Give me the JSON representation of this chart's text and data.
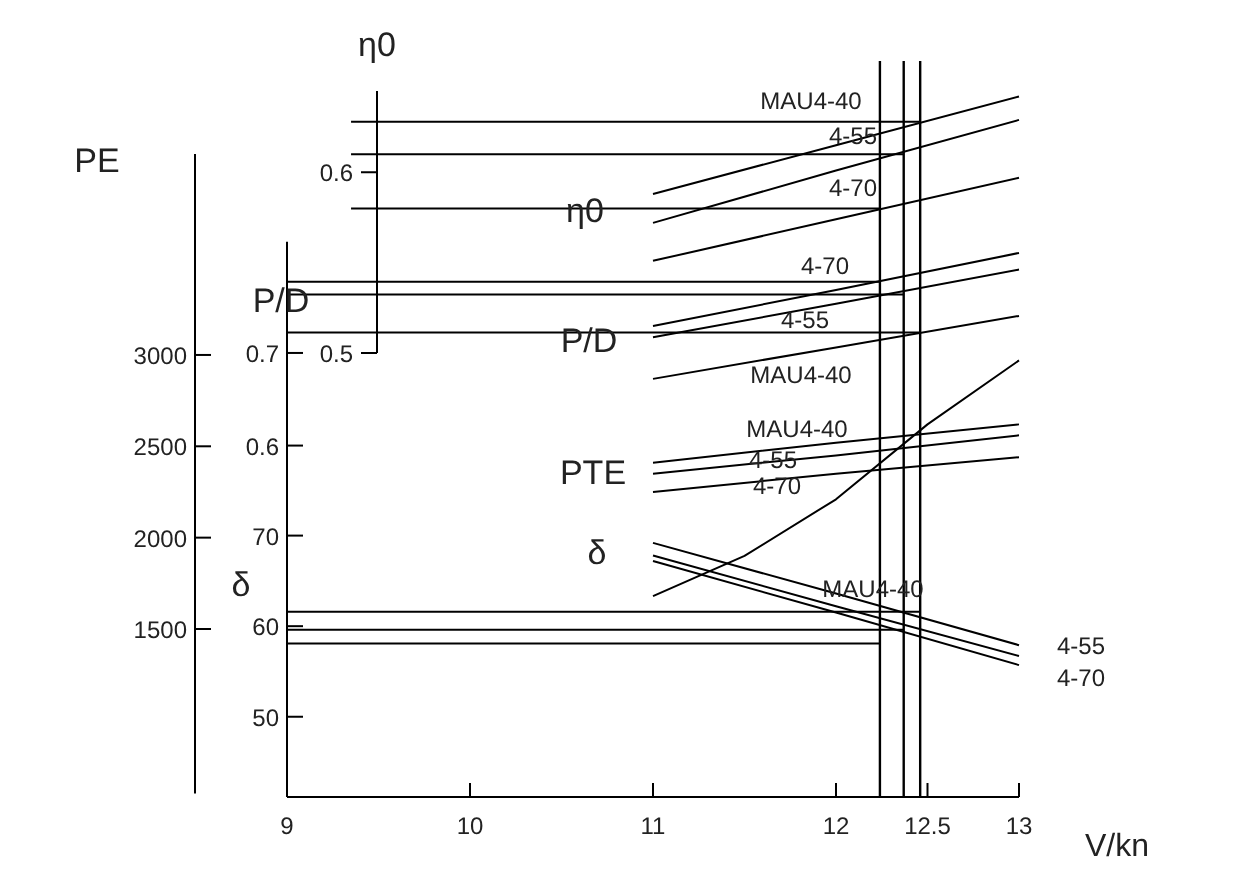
{
  "chart_data": [
    {
      "type": "line",
      "xlabel": "V/kn",
      "ylabel": "PE",
      "y2label": "P/D",
      "y3label": "δ",
      "xlim": [
        9,
        13
      ],
      "xticks": [
        9,
        10,
        11,
        12,
        12.5,
        13
      ],
      "ylim": [
        600,
        4100
      ],
      "yticks": [
        1500,
        2000,
        2500,
        3000
      ],
      "y2lim": [
        0.5,
        0.82
      ],
      "y2ticks": [
        0.6,
        0.7
      ],
      "y3lim": [
        42,
        70
      ],
      "y3ticks": [
        50,
        60,
        70
      ],
      "series": [
        {
          "name": "MAU4-40",
          "color": "#000000",
          "axis": "y2",
          "x": [
            11,
            12,
            13
          ],
          "values": [
            0.672,
            0.706,
            0.74
          ]
        },
        {
          "name": "4-55",
          "color": "#000000",
          "axis": "y2",
          "x": [
            11,
            12,
            13
          ],
          "values": [
            0.717,
            0.753,
            0.79
          ]
        },
        {
          "name": "4-70",
          "color": "#000000",
          "axis": "y2",
          "x": [
            11,
            12,
            13
          ],
          "values": [
            0.729,
            0.768,
            0.808
          ]
        },
        {
          "name": "MAU4-40",
          "color": "#000000",
          "x": [
            11,
            12,
            13
          ],
          "values": [
            2410,
            2520,
            2620
          ]
        },
        {
          "name": "4-55",
          "color": "#000000",
          "x": [
            11,
            12,
            13
          ],
          "values": [
            2350,
            2450,
            2560
          ]
        },
        {
          "name": "4-70",
          "color": "#000000",
          "x": [
            11,
            12,
            13
          ],
          "values": [
            2250,
            2350,
            2440
          ]
        },
        {
          "name": "MAU4-40",
          "color": "#000000",
          "axis": "y3",
          "x": [
            11,
            12,
            13
          ],
          "values": [
            69.2,
            63.6,
            57.9
          ]
        },
        {
          "name": "4-55",
          "color": "#000000",
          "axis": "y3",
          "x": [
            11,
            12,
            13
          ],
          "values": [
            67.8,
            62.2,
            56.7
          ]
        },
        {
          "name": "4-70",
          "color": "#000000",
          "axis": "y3",
          "x": [
            11,
            12,
            13
          ],
          "values": [
            67.2,
            61.5,
            55.7
          ]
        },
        {
          "color": "#000000",
          "x": [
            11,
            11.5,
            12,
            12.5,
            13
          ],
          "values": [
            1680,
            1900,
            2210,
            2620,
            2970
          ]
        },
        {
          "color": "#000000",
          "axis": "y2",
          "x": [
            9,
            12.24
          ],
          "values": [
            0.777,
            0.777
          ]
        },
        {
          "color": "#000000",
          "axis": "y2",
          "x": [
            9,
            12.37
          ],
          "values": [
            0.763,
            0.763
          ]
        },
        {
          "color": "#000000",
          "axis": "y2",
          "x": [
            9,
            12.46
          ],
          "values": [
            0.722,
            0.722
          ]
        },
        {
          "color": "#000000",
          "axis": "y3",
          "x": [
            9,
            12.46
          ],
          "values": [
            61.6,
            61.6
          ]
        },
        {
          "color": "#000000",
          "axis": "y3",
          "x": [
            9,
            12.37
          ],
          "values": [
            59.6,
            59.6
          ]
        },
        {
          "color": "#000000",
          "axis": "y3",
          "x": [
            9,
            12.24
          ],
          "values": [
            58.1,
            58.1
          ]
        }
      ],
      "ref_lines": [
        {
          "axis": "x",
          "value": 12.24,
          "color": "#000000"
        },
        {
          "axis": "x",
          "value": 12.37,
          "color": "#000000"
        },
        {
          "axis": "x",
          "value": 12.46,
          "color": "#000000"
        }
      ],
      "annotations": [
        "P/D",
        "PTE",
        "δ"
      ]
    },
    {
      "type": "line",
      "ylabel": "η0",
      "xlim": [
        9,
        13
      ],
      "ylim": [
        0.5,
        0.645
      ],
      "yticks": [
        0.5,
        0.6
      ],
      "tick_labels": "y",
      "series": [
        {
          "name": "MAU4-40",
          "color": "#000000",
          "x": [
            11,
            12,
            13
          ],
          "values": [
            0.588,
            0.615,
            0.642
          ]
        },
        {
          "name": "4-55",
          "color": "#000000",
          "x": [
            11,
            12,
            13
          ],
          "values": [
            0.572,
            0.601,
            0.629
          ]
        },
        {
          "name": "4-70",
          "color": "#000000",
          "x": [
            11,
            12,
            13
          ],
          "values": [
            0.551,
            0.574,
            0.597
          ]
        },
        {
          "color": "#000000",
          "x": [
            9.35,
            12.46
          ],
          "values": [
            0.628,
            0.628
          ]
        },
        {
          "color": "#000000",
          "x": [
            9.35,
            12.37
          ],
          "values": [
            0.61,
            0.61
          ]
        },
        {
          "color": "#000000",
          "x": [
            9.35,
            12.24
          ],
          "values": [
            0.58,
            0.58
          ]
        }
      ],
      "annotations": [
        "η0"
      ]
    }
  ]
}
